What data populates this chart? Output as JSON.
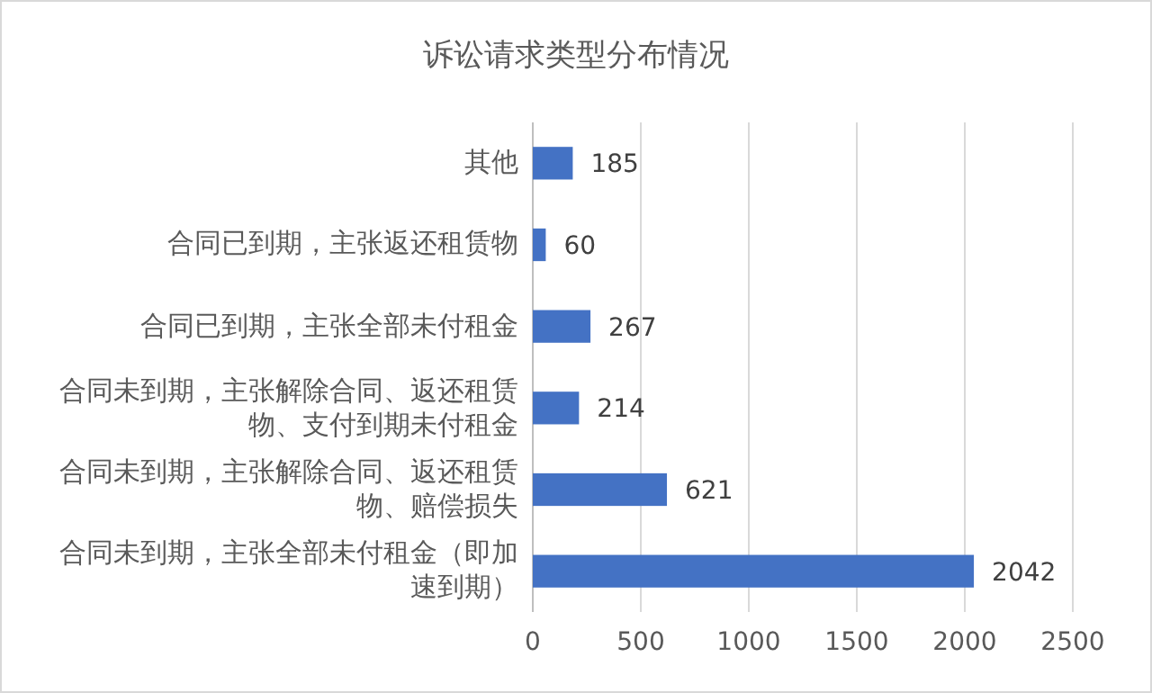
{
  "chart_data": {
    "type": "bar",
    "orientation": "horizontal",
    "title": "诉讼请求类型分布情况",
    "categories": [
      "其他",
      "合同已到期，主张返还租赁物",
      "合同已到期，主张全部未付租金",
      "合同未到期，主张解除合同、返还租赁物、支付到期未付租金",
      "合同未到期，主张解除合同、返还租赁物、赔偿损失",
      "合同未到期，主张全部未付租金（即加速到期）"
    ],
    "values": [
      185,
      60,
      267,
      214,
      621,
      2042
    ],
    "color": "#4472c4",
    "xlim": [
      0,
      2500
    ],
    "xticks": [
      0,
      500,
      1000,
      1500,
      2000,
      2500
    ],
    "grid": "x",
    "data_labels": true
  }
}
